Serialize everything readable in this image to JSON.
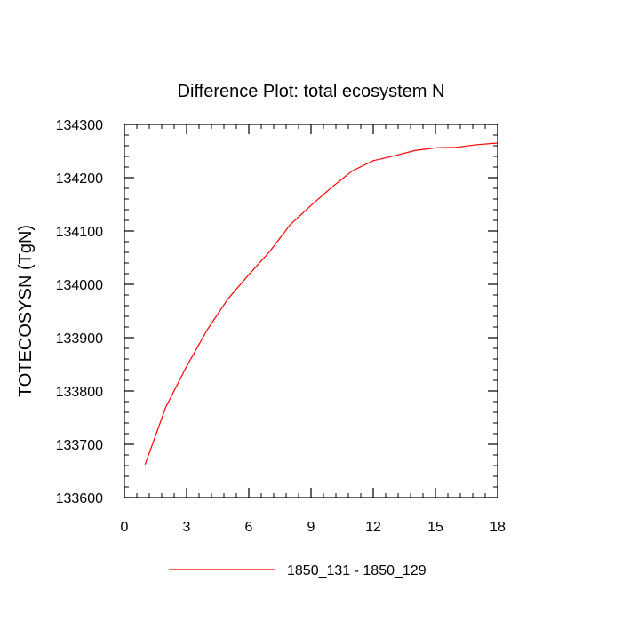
{
  "chart_data": {
    "type": "line",
    "title": "Difference Plot: total ecosystem N",
    "xlabel": "",
    "ylabel": "TOTECOSYSN  (TgN)",
    "xlim": [
      0,
      18
    ],
    "ylim": [
      133600,
      134300
    ],
    "xticks": [
      0,
      3,
      6,
      9,
      12,
      15,
      18
    ],
    "yticks": [
      133600,
      133700,
      133800,
      133900,
      134000,
      134100,
      134200,
      134300
    ],
    "grid": false,
    "legend_position": "bottom",
    "series": [
      {
        "name": "1850_131 - 1850_129",
        "color": "#ff0000",
        "x": [
          1,
          2,
          3,
          4,
          5,
          6,
          7,
          8,
          9,
          10,
          11,
          12,
          13,
          14,
          15,
          16,
          17,
          18
        ],
        "y": [
          133662,
          133770,
          133846,
          133915,
          133973,
          134018,
          134061,
          134112,
          134148,
          134182,
          134213,
          134232,
          134241,
          134251,
          134256,
          134257,
          134262,
          134265
        ]
      }
    ]
  }
}
